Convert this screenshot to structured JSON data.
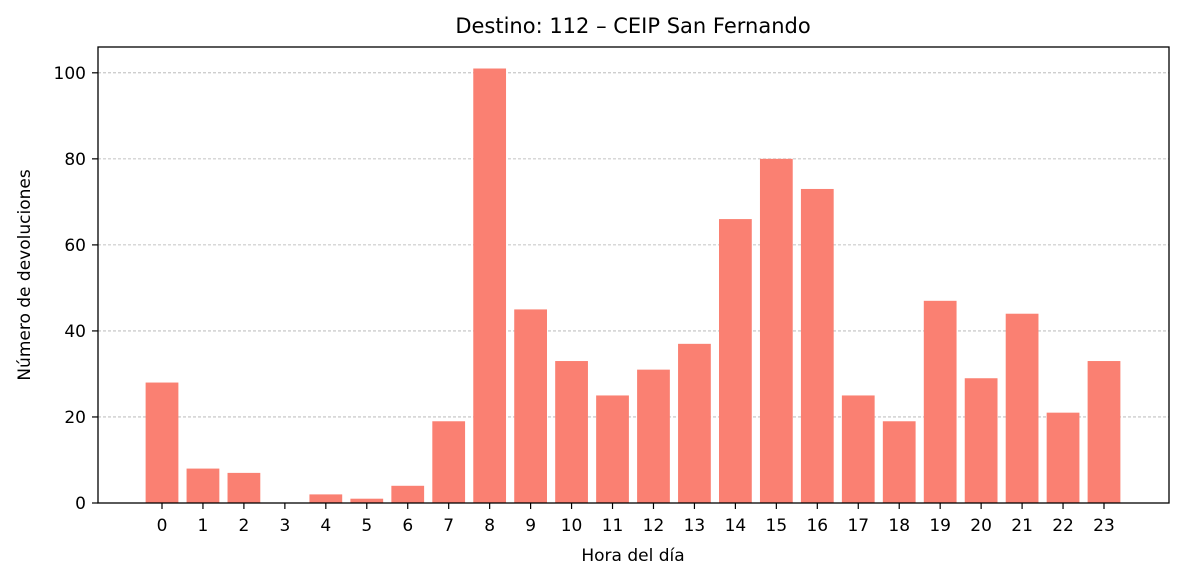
{
  "chart_data": {
    "type": "bar",
    "title": "Destino: 112 – CEIP San Fernando",
    "xlabel": "Hora del día",
    "ylabel": "Número de devoluciones",
    "categories": [
      "0",
      "1",
      "2",
      "3",
      "4",
      "5",
      "6",
      "7",
      "8",
      "9",
      "10",
      "11",
      "12",
      "13",
      "14",
      "15",
      "16",
      "17",
      "18",
      "19",
      "20",
      "21",
      "22",
      "23"
    ],
    "values": [
      28,
      8,
      7,
      0,
      2,
      1,
      4,
      19,
      101,
      45,
      33,
      25,
      31,
      37,
      66,
      80,
      73,
      25,
      19,
      47,
      29,
      44,
      21,
      33
    ],
    "ylim": [
      0,
      106
    ],
    "yticks": [
      "0",
      "20",
      "40",
      "60",
      "80",
      "100"
    ],
    "ytick_values": [
      0,
      20,
      40,
      60,
      80,
      100
    ],
    "grid": "y-dashed",
    "colors": {
      "bar": "#fa8072",
      "grid": "#b0b0b0",
      "axis": "#000000"
    }
  }
}
